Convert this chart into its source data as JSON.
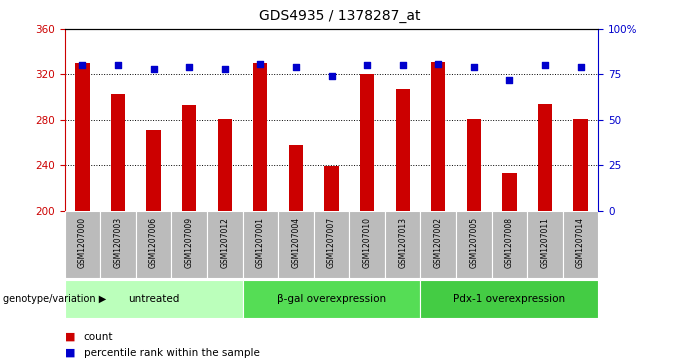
{
  "title": "GDS4935 / 1378287_at",
  "samples": [
    "GSM1207000",
    "GSM1207003",
    "GSM1207006",
    "GSM1207009",
    "GSM1207012",
    "GSM1207001",
    "GSM1207004",
    "GSM1207007",
    "GSM1207010",
    "GSM1207013",
    "GSM1207002",
    "GSM1207005",
    "GSM1207008",
    "GSM1207011",
    "GSM1207014"
  ],
  "counts": [
    330,
    303,
    271,
    293,
    281,
    330,
    258,
    239,
    320,
    307,
    331,
    281,
    233,
    294,
    281
  ],
  "percentiles": [
    80,
    80,
    78,
    79,
    78,
    81,
    79,
    74,
    80,
    80,
    81,
    79,
    72,
    80,
    79
  ],
  "groups": [
    {
      "label": "untreated",
      "start": 0,
      "end": 5,
      "color": "#bbffbb"
    },
    {
      "label": "β-gal overexpression",
      "start": 5,
      "end": 10,
      "color": "#55dd55"
    },
    {
      "label": "Pdx-1 overexpression",
      "start": 10,
      "end": 15,
      "color": "#44cc44"
    }
  ],
  "ylim_left": [
    200,
    360
  ],
  "ylim_right": [
    0,
    100
  ],
  "yticks_left": [
    200,
    240,
    280,
    320,
    360
  ],
  "yticks_right": [
    0,
    25,
    50,
    75,
    100
  ],
  "ytick_labels_right": [
    "0",
    "25",
    "50",
    "75",
    "100%"
  ],
  "bar_color": "#cc0000",
  "dot_color": "#0000cc",
  "bar_bottom": 200,
  "grid_lines": [
    240,
    280,
    320
  ],
  "title_fontsize": 10,
  "axis_label_color_left": "#cc0000",
  "axis_label_color_right": "#0000cc",
  "genotype_label": "genotype/variation",
  "legend_count_label": "count",
  "legend_percentile_label": "percentile rank within the sample",
  "bar_width": 0.4,
  "tick_bg_color": "#bbbbbb",
  "tick_fontsize": 5.5,
  "group_fontsize": 7.5
}
